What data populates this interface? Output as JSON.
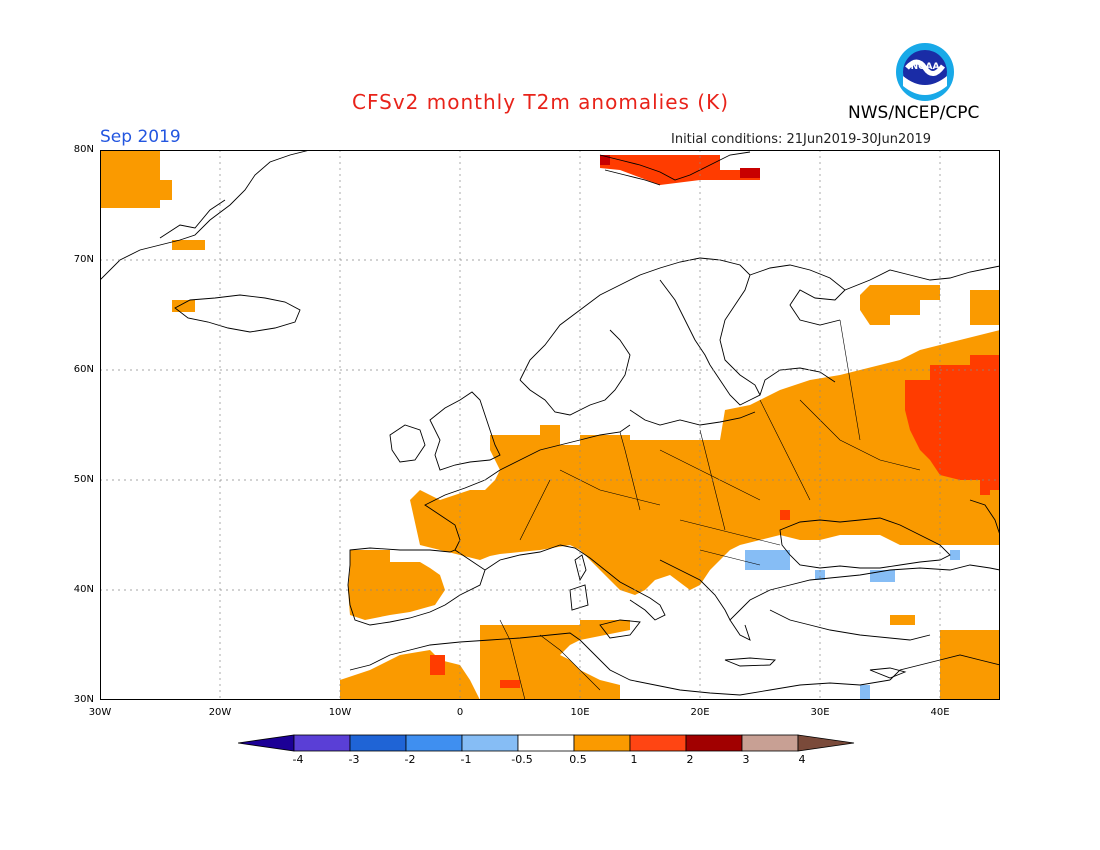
{
  "title": "CFSv2 monthly T2m anomalies (K)",
  "period": "Sep 2019",
  "organization": "NWS/NCEP/CPC",
  "logo_text": "NOAA",
  "initial_conditions": "Initial conditions: 21Jun2019-30Jun2019",
  "lat_labels": [
    "80N",
    "70N",
    "60N",
    "50N",
    "40N",
    "30N"
  ],
  "lon_labels": [
    "30W",
    "20W",
    "10W",
    "0",
    "10E",
    "20E",
    "30E",
    "40E"
  ],
  "colorbar": {
    "labels": [
      "-4",
      "-3",
      "-2",
      "-1",
      "-0.5",
      "0.5",
      "1",
      "2",
      "3",
      "4"
    ],
    "colors": [
      "#1c0096",
      "#5a3fd6",
      "#1f64d6",
      "#3f8ff0",
      "#86bdf5",
      "#ffffff",
      "#fa9a00",
      "#ff4513",
      "#a10000",
      "#c8a094",
      "#7a4a3a"
    ]
  },
  "anomaly_colors": {
    "warm_0_5_1": "#fa9a00",
    "warm_1_2": "#ff3c00",
    "warm_2_3": "#c80000",
    "cool_m1_m0_5": "#86bdf5"
  }
}
